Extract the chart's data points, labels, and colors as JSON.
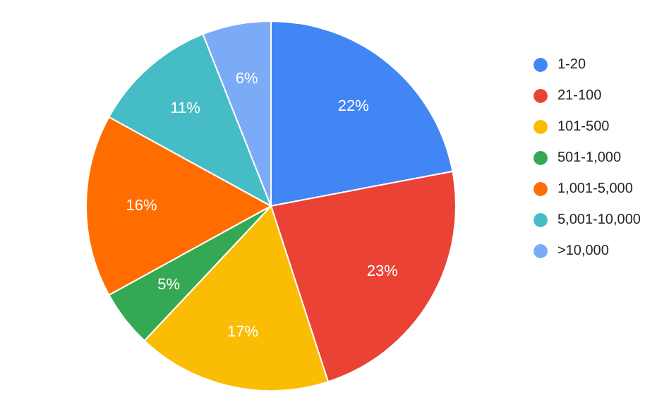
{
  "chart_data": {
    "type": "pie",
    "categories": [
      "1-20",
      "21-100",
      "101-500",
      "501-1,000",
      "1,001-5,000",
      "5,001-10,000",
      ">10,000"
    ],
    "values": [
      22,
      23,
      17,
      5,
      16,
      11,
      6
    ],
    "value_labels": [
      "22%",
      "23%",
      "17%",
      "5%",
      "16%",
      "11%",
      "6%"
    ],
    "colors": [
      "#4285f4",
      "#ea4335",
      "#fbbc04",
      "#34a853",
      "#ff6d01",
      "#46bdc6",
      "#7baaf7"
    ],
    "legend": "right"
  }
}
